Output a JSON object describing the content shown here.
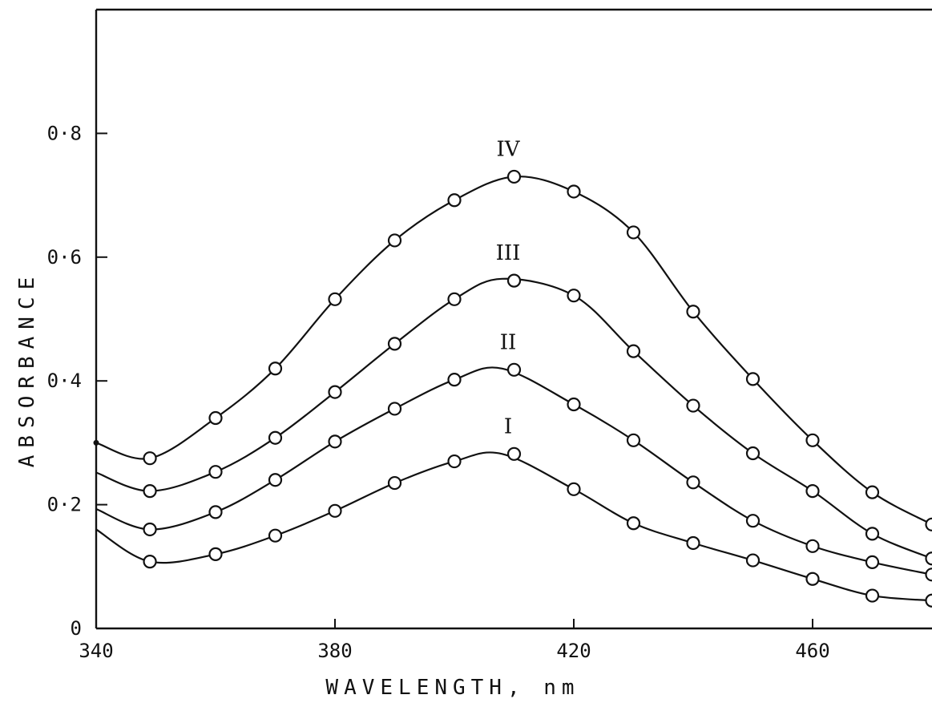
{
  "chart_data": {
    "type": "line",
    "xlabel": "WAVELENGTH, nm",
    "ylabel": "ABSORBANCE",
    "xlim": [
      340,
      480
    ],
    "ylim": [
      0,
      1.0
    ],
    "xticks": [
      340,
      380,
      420,
      460
    ],
    "xtick_labels": [
      "340",
      "380",
      "420",
      "460"
    ],
    "yticks": [
      0,
      0.2,
      0.4,
      0.6,
      0.8
    ],
    "ytick_labels": [
      "0",
      "0·2",
      "0·4",
      "0·6",
      "0·8"
    ],
    "grid": false,
    "marker": "open-circle",
    "series": [
      {
        "name": "I",
        "curve": [
          [
            340,
            0.16
          ],
          [
            349,
            0.108
          ],
          [
            360,
            0.12
          ],
          [
            370,
            0.15
          ],
          [
            380,
            0.19
          ],
          [
            390,
            0.235
          ],
          [
            400,
            0.27
          ],
          [
            408,
            0.282
          ],
          [
            420,
            0.225
          ],
          [
            430,
            0.17
          ],
          [
            440,
            0.138
          ],
          [
            450,
            0.11
          ],
          [
            460,
            0.08
          ],
          [
            470,
            0.053
          ],
          [
            480,
            0.045
          ]
        ],
        "points": [
          [
            349,
            0.108
          ],
          [
            360,
            0.12
          ],
          [
            370,
            0.15
          ],
          [
            380,
            0.19
          ],
          [
            390,
            0.235
          ],
          [
            400,
            0.27
          ],
          [
            410,
            0.282
          ],
          [
            420,
            0.225
          ],
          [
            430,
            0.17
          ],
          [
            440,
            0.138
          ],
          [
            450,
            0.11
          ],
          [
            460,
            0.08
          ],
          [
            470,
            0.053
          ],
          [
            480,
            0.045
          ]
        ]
      },
      {
        "name": "II",
        "curve": [
          [
            340,
            0.193
          ],
          [
            349,
            0.16
          ],
          [
            360,
            0.188
          ],
          [
            370,
            0.24
          ],
          [
            380,
            0.302
          ],
          [
            390,
            0.355
          ],
          [
            400,
            0.402
          ],
          [
            408,
            0.42
          ],
          [
            420,
            0.362
          ],
          [
            430,
            0.304
          ],
          [
            440,
            0.236
          ],
          [
            450,
            0.174
          ],
          [
            460,
            0.133
          ],
          [
            470,
            0.107
          ],
          [
            480,
            0.087
          ]
        ],
        "points": [
          [
            349,
            0.16
          ],
          [
            360,
            0.188
          ],
          [
            370,
            0.24
          ],
          [
            380,
            0.302
          ],
          [
            390,
            0.355
          ],
          [
            400,
            0.402
          ],
          [
            410,
            0.418
          ],
          [
            420,
            0.362
          ],
          [
            430,
            0.304
          ],
          [
            440,
            0.236
          ],
          [
            450,
            0.174
          ],
          [
            460,
            0.133
          ],
          [
            470,
            0.107
          ],
          [
            480,
            0.087
          ]
        ]
      },
      {
        "name": "III",
        "curve": [
          [
            340,
            0.252
          ],
          [
            349,
            0.222
          ],
          [
            360,
            0.253
          ],
          [
            370,
            0.308
          ],
          [
            380,
            0.382
          ],
          [
            390,
            0.46
          ],
          [
            400,
            0.532
          ],
          [
            408,
            0.565
          ],
          [
            420,
            0.538
          ],
          [
            430,
            0.448
          ],
          [
            440,
            0.36
          ],
          [
            450,
            0.283
          ],
          [
            460,
            0.222
          ],
          [
            470,
            0.153
          ],
          [
            480,
            0.113
          ]
        ],
        "points": [
          [
            349,
            0.222
          ],
          [
            360,
            0.253
          ],
          [
            370,
            0.308
          ],
          [
            380,
            0.382
          ],
          [
            390,
            0.46
          ],
          [
            400,
            0.532
          ],
          [
            410,
            0.562
          ],
          [
            420,
            0.538
          ],
          [
            430,
            0.448
          ],
          [
            440,
            0.36
          ],
          [
            450,
            0.283
          ],
          [
            460,
            0.222
          ],
          [
            470,
            0.153
          ],
          [
            480,
            0.113
          ]
        ]
      },
      {
        "name": "IV",
        "curve": [
          [
            340,
            0.3
          ],
          [
            349,
            0.275
          ],
          [
            360,
            0.34
          ],
          [
            370,
            0.42
          ],
          [
            380,
            0.532
          ],
          [
            390,
            0.627
          ],
          [
            400,
            0.692
          ],
          [
            410,
            0.73
          ],
          [
            420,
            0.706
          ],
          [
            430,
            0.64
          ],
          [
            440,
            0.512
          ],
          [
            450,
            0.403
          ],
          [
            460,
            0.304
          ],
          [
            470,
            0.22
          ],
          [
            480,
            0.168
          ]
        ],
        "points": [
          [
            349,
            0.275
          ],
          [
            360,
            0.34
          ],
          [
            370,
            0.42
          ],
          [
            380,
            0.532
          ],
          [
            390,
            0.627
          ],
          [
            400,
            0.692
          ],
          [
            410,
            0.73
          ],
          [
            420,
            0.706
          ],
          [
            430,
            0.64
          ],
          [
            440,
            0.512
          ],
          [
            450,
            0.403
          ],
          [
            460,
            0.304
          ],
          [
            470,
            0.22
          ],
          [
            480,
            0.168
          ]
        ]
      }
    ],
    "series_label_anchor_x": [
      409,
      409,
      409,
      409
    ]
  }
}
